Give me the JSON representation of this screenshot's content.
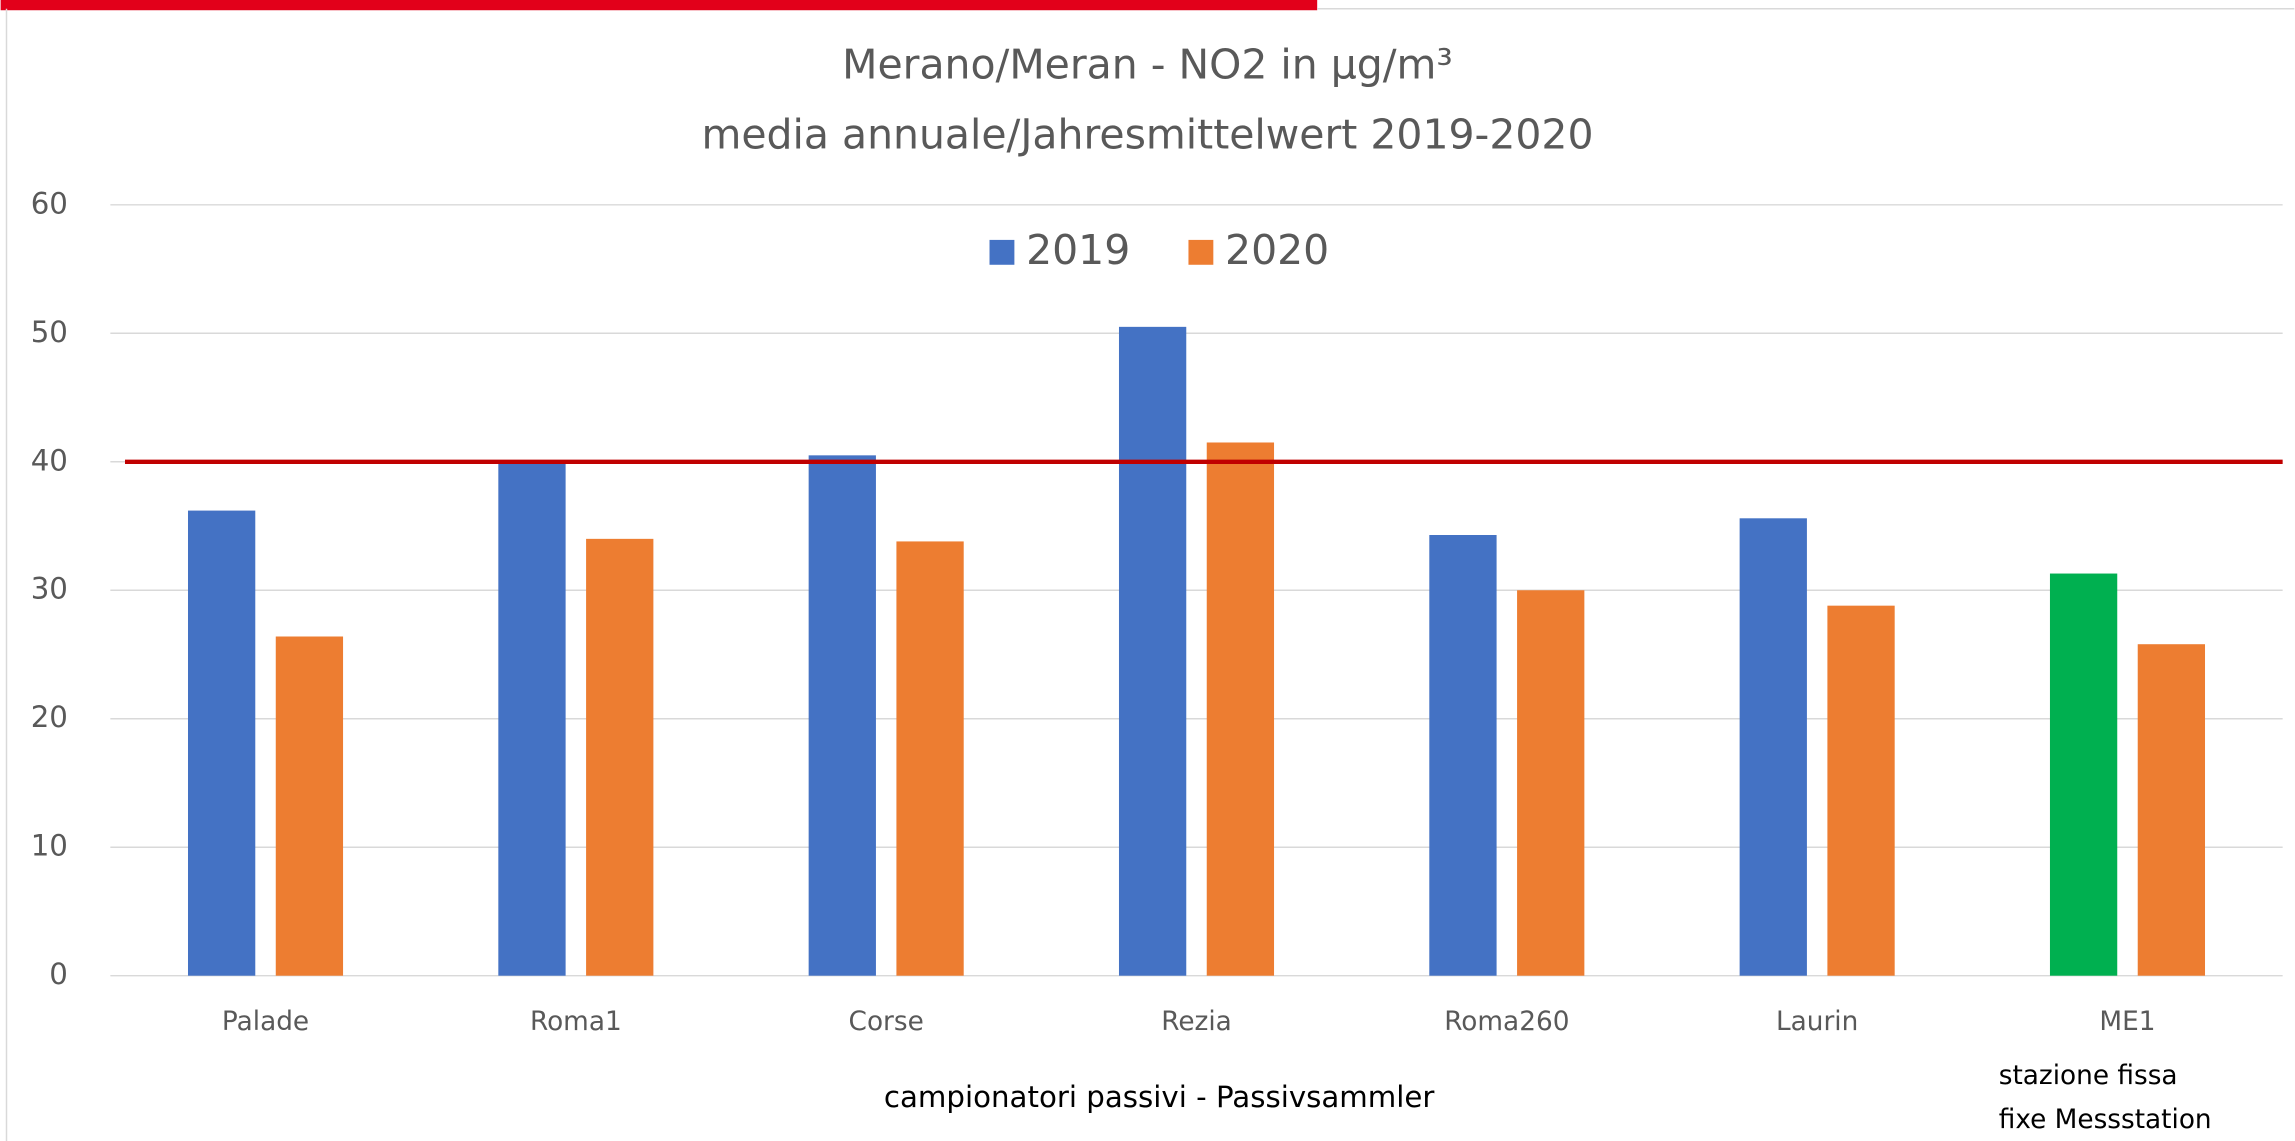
{
  "chart_data": {
    "type": "bar",
    "title": "Merano/Meran - NO2 in µg/m³",
    "subtitle": "media annuale/Jahresmittelwert 2019-2020",
    "x_label": "campionatori passivi - Passivsammler",
    "categories": [
      "Palade",
      "Roma1",
      "Corse",
      "Rezia",
      "Roma260",
      "Laurin",
      "ME1"
    ],
    "series": [
      {
        "name": "2019",
        "color": "#4472c4",
        "colors": [
          "#4472c4",
          "#4472c4",
          "#4472c4",
          "#4472c4",
          "#4472c4",
          "#4472c4",
          "#00b050"
        ],
        "values": [
          36.2,
          40,
          40.5,
          50.5,
          34.3,
          35.6,
          31.3
        ]
      },
      {
        "name": "2020",
        "color": "#ed7d31",
        "values": [
          26.4,
          34,
          33.8,
          41.5,
          30,
          28.8,
          25.8
        ]
      }
    ],
    "annotations": [
      "stazione fissa",
      "fixe Messstation"
    ],
    "reference_line": {
      "value": 40,
      "color": "#c00000"
    },
    "ylim": [
      0,
      60
    ],
    "yticks": [
      0,
      10,
      20,
      30,
      40,
      50,
      60
    ],
    "grid": true,
    "legend": "top"
  }
}
